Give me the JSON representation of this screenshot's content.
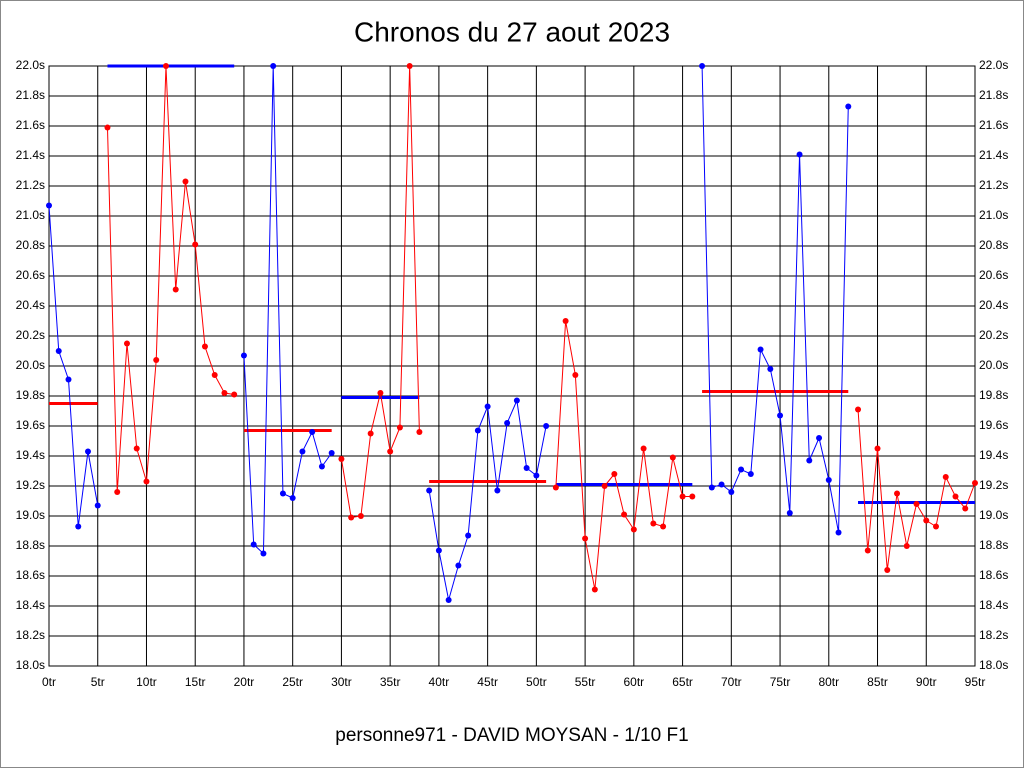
{
  "chart_data": {
    "type": "line",
    "title": "Chronos du 27 aout 2023",
    "xlabel": "personne971 - DAVID MOYSAN - 1/10 F1",
    "xlim": [
      0,
      95
    ],
    "ylim": [
      18.0,
      22.0
    ],
    "grid": true,
    "xticks": [
      {
        "value": 0,
        "label": "0tr"
      },
      {
        "value": 5,
        "label": "5tr"
      },
      {
        "value": 10,
        "label": "10tr"
      },
      {
        "value": 15,
        "label": "15tr"
      },
      {
        "value": 20,
        "label": "20tr"
      },
      {
        "value": 25,
        "label": "25tr"
      },
      {
        "value": 30,
        "label": "30tr"
      },
      {
        "value": 35,
        "label": "35tr"
      },
      {
        "value": 40,
        "label": "40tr"
      },
      {
        "value": 45,
        "label": "45tr"
      },
      {
        "value": 50,
        "label": "50tr"
      },
      {
        "value": 55,
        "label": "55tr"
      },
      {
        "value": 60,
        "label": "60tr"
      },
      {
        "value": 65,
        "label": "65tr"
      },
      {
        "value": 70,
        "label": "70tr"
      },
      {
        "value": 75,
        "label": "75tr"
      },
      {
        "value": 80,
        "label": "80tr"
      },
      {
        "value": 85,
        "label": "85tr"
      },
      {
        "value": 90,
        "label": "90tr"
      },
      {
        "value": 95,
        "label": "95tr"
      }
    ],
    "yticks": [
      {
        "value": 18.0,
        "label": "18.0s"
      },
      {
        "value": 18.2,
        "label": "18.2s"
      },
      {
        "value": 18.4,
        "label": "18.4s"
      },
      {
        "value": 18.6,
        "label": "18.6s"
      },
      {
        "value": 18.8,
        "label": "18.8s"
      },
      {
        "value": 19.0,
        "label": "19.0s"
      },
      {
        "value": 19.2,
        "label": "19.2s"
      },
      {
        "value": 19.4,
        "label": "19.4s"
      },
      {
        "value": 19.6,
        "label": "19.6s"
      },
      {
        "value": 19.8,
        "label": "19.8s"
      },
      {
        "value": 20.0,
        "label": "20.0s"
      },
      {
        "value": 20.2,
        "label": "20.2s"
      },
      {
        "value": 20.4,
        "label": "20.4s"
      },
      {
        "value": 20.6,
        "label": "20.6s"
      },
      {
        "value": 20.8,
        "label": "20.8s"
      },
      {
        "value": 21.0,
        "label": "21.0s"
      },
      {
        "value": 21.2,
        "label": "21.2s"
      },
      {
        "value": 21.4,
        "label": "21.4s"
      },
      {
        "value": 21.6,
        "label": "21.6s"
      },
      {
        "value": 21.8,
        "label": "21.8s"
      },
      {
        "value": 22.0,
        "label": "22.0s"
      }
    ],
    "series": [
      {
        "color": "#0000ff",
        "mean_color": "#ff0000",
        "mean": 19.75,
        "x": [
          0,
          1,
          2,
          3,
          4,
          5
        ],
        "values": [
          21.07,
          20.1,
          19.91,
          18.93,
          19.43,
          19.07
        ]
      },
      {
        "color": "#ff0000",
        "mean_color": "#0000ff",
        "mean": 22.0,
        "x": [
          6,
          7,
          8,
          9,
          10,
          11,
          12,
          13,
          14,
          15,
          16,
          17,
          18,
          19
        ],
        "values": [
          21.59,
          19.16,
          20.15,
          19.45,
          19.23,
          20.04,
          22.0,
          20.51,
          21.23,
          20.81,
          20.13,
          19.94,
          19.82,
          19.81
        ]
      },
      {
        "color": "#0000ff",
        "mean_color": "#ff0000",
        "mean": 19.57,
        "x": [
          20,
          21,
          22,
          23,
          24,
          25,
          26,
          27,
          28,
          29
        ],
        "values": [
          20.07,
          18.81,
          18.75,
          22.0,
          19.15,
          19.12,
          19.43,
          19.56,
          19.33,
          19.42
        ]
      },
      {
        "color": "#ff0000",
        "mean_color": "#0000ff",
        "mean": 19.79,
        "x": [
          30,
          31,
          32,
          33,
          34,
          35,
          36,
          37,
          38
        ],
        "values": [
          19.38,
          18.99,
          19.0,
          19.55,
          19.82,
          19.43,
          19.59,
          22.0,
          19.56
        ]
      },
      {
        "color": "#0000ff",
        "mean_color": "#ff0000",
        "mean": 19.23,
        "x": [
          39,
          40,
          41,
          42,
          43,
          44,
          45,
          46,
          47,
          48,
          49,
          50,
          51
        ],
        "values": [
          19.17,
          18.77,
          18.44,
          18.67,
          18.87,
          19.57,
          19.73,
          19.17,
          19.62,
          19.77,
          19.32,
          19.27,
          19.6
        ]
      },
      {
        "color": "#ff0000",
        "mean_color": "#0000ff",
        "mean": 19.21,
        "x": [
          52,
          53,
          54,
          55,
          56,
          57,
          58,
          59,
          60,
          61,
          62,
          63,
          64,
          65,
          66
        ],
        "values": [
          19.19,
          20.3,
          19.94,
          18.85,
          18.51,
          19.2,
          19.28,
          19.01,
          18.91,
          19.45,
          18.95,
          18.93,
          19.39,
          19.13,
          19.13
        ]
      },
      {
        "color": "#0000ff",
        "mean_color": "#ff0000",
        "mean": 19.83,
        "x": [
          67,
          68,
          69,
          70,
          71,
          72,
          73,
          74,
          75,
          76,
          77,
          78,
          79,
          80,
          81,
          82
        ],
        "values": [
          22.0,
          19.19,
          19.21,
          19.16,
          19.31,
          19.28,
          20.11,
          19.98,
          19.67,
          19.02,
          21.41,
          19.37,
          19.52,
          19.24,
          18.89,
          21.73
        ]
      },
      {
        "color": "#ff0000",
        "mean_color": "#0000ff",
        "mean": 19.09,
        "x": [
          83,
          84,
          85,
          86,
          87,
          88,
          89,
          90,
          91,
          92,
          93,
          94,
          95
        ],
        "values": [
          19.71,
          18.77,
          19.45,
          18.64,
          19.15,
          18.8,
          19.08,
          18.97,
          18.93,
          19.26,
          19.13,
          19.05,
          19.22
        ]
      }
    ]
  }
}
